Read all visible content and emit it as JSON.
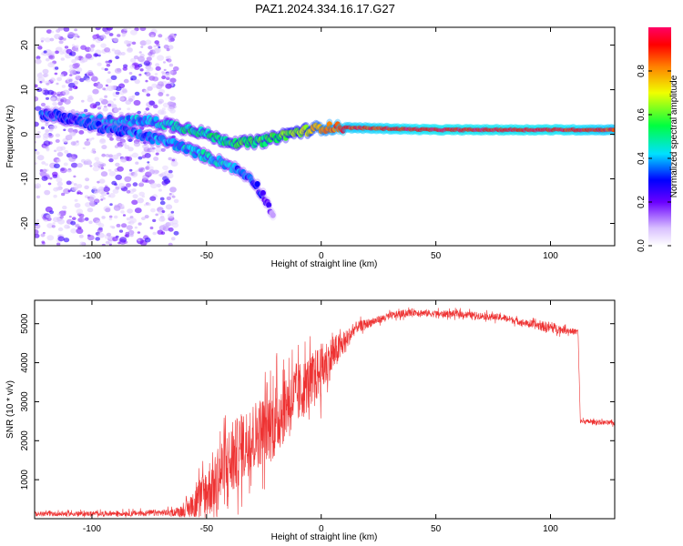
{
  "figure": {
    "title": "PAZ1.2024.334.16.17.G27"
  },
  "chart_data": [
    {
      "type": "heatmap",
      "xlabel": "Height of straight line (km)",
      "ylabel": "Frequency (Hz)",
      "xlim": [
        -125,
        128
      ],
      "ylim": [
        -25,
        24
      ],
      "xticks": [
        -100,
        -50,
        0,
        50,
        100
      ],
      "yticks": [
        -20,
        -10,
        0,
        10,
        20
      ],
      "colorbar": {
        "label": "Normalized spectral amplitude",
        "range": [
          0,
          1
        ],
        "ticks": [
          "0.0",
          "0.2",
          "0.4",
          "0.6",
          "0.8"
        ],
        "colormap": "rainbow (violet to red)"
      },
      "ridges": [
        {
          "points": [
            [
              -122,
              4
            ],
            [
              -110,
              3.5
            ],
            [
              -90,
              3
            ],
            [
              -75,
              3
            ],
            [
              -65,
              2
            ],
            [
              -55,
              1
            ],
            [
              -45,
              -1
            ],
            [
              -35,
              -2
            ],
            [
              -25,
              -1.5
            ],
            [
              -15,
              0
            ],
            [
              -5,
              1
            ],
            [
              0,
              1.5
            ],
            [
              10,
              1.5
            ],
            [
              50,
              1
            ],
            [
              100,
              1
            ],
            [
              128,
              1
            ]
          ],
          "amplitude": [
            0.35,
            0.35,
            0.4,
            0.4,
            0.45,
            0.5,
            0.5,
            0.55,
            0.55,
            0.6,
            0.7,
            0.8,
            0.9,
            0.95,
            0.95,
            0.9
          ]
        },
        {
          "points": [
            [
              -120,
              5
            ],
            [
              -100,
              2
            ],
            [
              -80,
              0
            ],
            [
              -65,
              -2
            ],
            [
              -50,
              -5
            ],
            [
              -40,
              -7
            ],
            [
              -30,
              -10
            ],
            [
              -25,
              -14
            ],
            [
              -21,
              -18
            ]
          ],
          "amplitude": [
            0.3,
            0.32,
            0.35,
            0.4,
            0.45,
            0.4,
            0.3,
            0.25,
            0.15
          ]
        }
      ],
      "noise_region_km": [
        -125,
        -63
      ]
    },
    {
      "type": "line",
      "xlabel": "Height of straight line (km)",
      "ylabel": "SNR (10 * v/v)",
      "xlim": [
        -125,
        128
      ],
      "ylim": [
        0,
        5600
      ],
      "xticks": [
        -100,
        -50,
        0,
        50,
        100
      ],
      "yticks": [
        1000,
        2000,
        3000,
        4000,
        5000
      ],
      "color": "#ee3333",
      "envelope": {
        "x": [
          -125,
          -100,
          -80,
          -65,
          -60,
          -55,
          -50,
          -45,
          -40,
          -35,
          -30,
          -25,
          -20,
          -15,
          -10,
          -5,
          0,
          5,
          10,
          15,
          20,
          25,
          30,
          35,
          40,
          50,
          60,
          70,
          80,
          90,
          100,
          105,
          110,
          112,
          113,
          128
        ],
        "mean": [
          120,
          130,
          140,
          160,
          200,
          350,
          700,
          1100,
          1400,
          1800,
          2100,
          2300,
          2500,
          3000,
          3200,
          3500,
          3800,
          4200,
          4500,
          4900,
          5000,
          5100,
          5200,
          5250,
          5300,
          5250,
          5250,
          5200,
          5150,
          5000,
          4900,
          4850,
          4800,
          4800,
          2500,
          2450
        ],
        "noise": [
          60,
          60,
          70,
          90,
          150,
          400,
          700,
          900,
          1000,
          900,
          900,
          900,
          1000,
          900,
          800,
          700,
          700,
          500,
          300,
          150,
          120,
          100,
          100,
          100,
          90,
          90,
          90,
          90,
          90,
          90,
          150,
          100,
          80,
          80,
          60,
          60
        ]
      }
    }
  ]
}
